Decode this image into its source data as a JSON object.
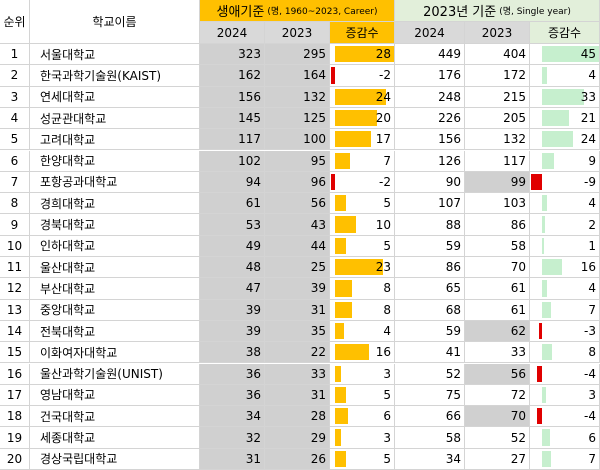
{
  "header": {
    "rank": "순위",
    "name": "학교이름",
    "career": {
      "title": "생애기준",
      "note": "(명, 1960~2023, Career)"
    },
    "single": {
      "title": "2023년 기준",
      "note": "(명, Single year)"
    },
    "columns": [
      "2024",
      "2023",
      "증감수"
    ]
  },
  "table": {
    "rows": [
      [
        "1",
        "서울대학교",
        323,
        295,
        28,
        449,
        404,
        45
      ],
      [
        "2",
        "한국과학기술원(KAIST)",
        162,
        164,
        -2,
        176,
        172,
        4
      ],
      [
        "3",
        "연세대학교",
        156,
        132,
        24,
        248,
        215,
        33
      ],
      [
        "4",
        "성균관대학교",
        145,
        125,
        20,
        226,
        205,
        21
      ],
      [
        "5",
        "고려대학교",
        117,
        100,
        17,
        156,
        132,
        24
      ],
      [
        "6",
        "한양대학교",
        102,
        95,
        7,
        126,
        117,
        9
      ],
      [
        "7",
        "포항공과대학교",
        94,
        96,
        -2,
        90,
        99,
        -9
      ],
      [
        "8",
        "경희대학교",
        61,
        56,
        5,
        107,
        103,
        4
      ],
      [
        "9",
        "경북대학교",
        53,
        43,
        10,
        88,
        86,
        2
      ],
      [
        "10",
        "인하대학교",
        49,
        44,
        5,
        59,
        58,
        1
      ],
      [
        "11",
        "울산대학교",
        48,
        25,
        23,
        86,
        70,
        16
      ],
      [
        "12",
        "부산대학교",
        47,
        39,
        8,
        65,
        61,
        4
      ],
      [
        "13",
        "중앙대학교",
        39,
        31,
        8,
        68,
        61,
        7
      ],
      [
        "14",
        "전북대학교",
        39,
        35,
        4,
        59,
        62,
        -3
      ],
      [
        "15",
        "이화여자대학교",
        38,
        22,
        16,
        41,
        33,
        8
      ],
      [
        "16",
        "울산과학기술원(UNIST)",
        36,
        33,
        3,
        52,
        56,
        -4
      ],
      [
        "17",
        "영남대학교",
        36,
        31,
        5,
        75,
        72,
        3
      ],
      [
        "18",
        "건국대학교",
        34,
        28,
        6,
        66,
        70,
        -4
      ],
      [
        "19",
        "세종대학교",
        32,
        29,
        3,
        58,
        52,
        6
      ],
      [
        "20",
        "경상국립대학교",
        31,
        26,
        5,
        34,
        27,
        7
      ]
    ]
  }
}
